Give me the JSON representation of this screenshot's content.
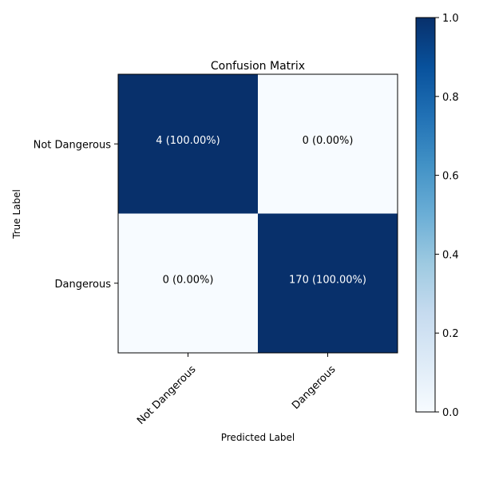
{
  "chart_data": {
    "type": "heatmap",
    "title": "Confusion Matrix",
    "xlabel": "Predicted Label",
    "ylabel": "True Label",
    "x_categories": [
      "Not Dangerous",
      "Dangerous"
    ],
    "y_categories": [
      "Not Dangerous",
      "Dangerous"
    ],
    "counts": [
      [
        4,
        0
      ],
      [
        0,
        170
      ]
    ],
    "normalized": [
      [
        1.0,
        0.0
      ],
      [
        0.0,
        1.0
      ]
    ],
    "cell_labels": [
      [
        "4 (100.00%)",
        "0 (0.00%)"
      ],
      [
        "0 (0.00%)",
        "170 (100.00%)"
      ]
    ],
    "colormap": "Blues",
    "color_low": "#f7fbff",
    "color_high": "#08306b",
    "colorbar": {
      "range": [
        0,
        1
      ],
      "ticks": [
        0.0,
        0.2,
        0.4,
        0.6,
        0.8,
        1.0
      ],
      "tick_labels": [
        "0.0",
        "0.2",
        "0.4",
        "0.6",
        "0.8",
        "1.0"
      ]
    },
    "grid": false
  }
}
